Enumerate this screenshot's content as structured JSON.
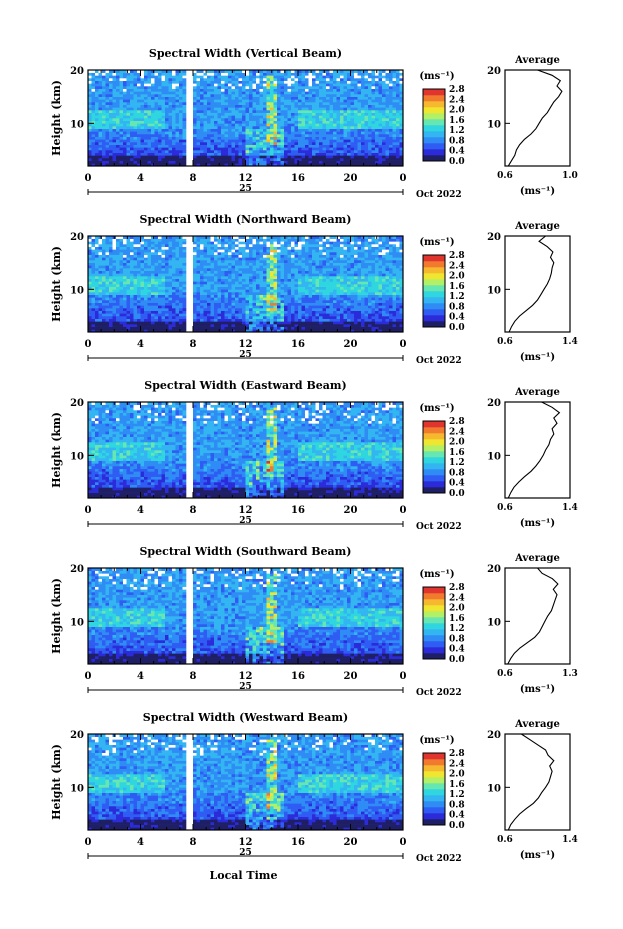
{
  "figure": {
    "month_label": "Oct 2022",
    "day_label": "25",
    "xlabel": "Local Time",
    "ylabel": "Height (km)",
    "unit_label": "(ms⁻¹)",
    "profile_title": "Average",
    "profile_xlabel": "(ms⁻¹)"
  },
  "colorbar": {
    "ticks": [
      "2.8",
      "2.4",
      "2.0",
      "1.6",
      "1.2",
      "0.8",
      "0.4",
      "0.0"
    ],
    "colors": [
      "#1f1f66",
      "#2b2bd9",
      "#2f5cf2",
      "#2f8cf5",
      "#33b5f2",
      "#2fd6e0",
      "#66e6b0",
      "#b3f066",
      "#f0e62f",
      "#f5b82f",
      "#f27a2f",
      "#e0352f"
    ]
  },
  "chart_data": [
    {
      "type": "heatmap",
      "title": "Spectral Width (Vertical Beam)",
      "x_ticks": [
        "0",
        "4",
        "8",
        "12",
        "16",
        "20",
        "0"
      ],
      "xlim": [
        0,
        24
      ],
      "y_ticks": [
        "20",
        "10"
      ],
      "ylim": [
        2,
        20
      ],
      "zlim": [
        0,
        2.8
      ],
      "profile": {
        "title": "Average",
        "x_ticks": [
          "0.6",
          "1.0"
        ],
        "xlim": [
          0.6,
          1.0
        ],
        "heights": [
          2,
          3,
          4,
          5,
          6,
          7,
          8,
          9,
          10,
          11,
          12,
          13,
          14,
          15,
          16,
          17,
          18,
          19,
          20
        ],
        "values": [
          0.62,
          0.64,
          0.66,
          0.67,
          0.69,
          0.72,
          0.76,
          0.79,
          0.81,
          0.83,
          0.86,
          0.88,
          0.9,
          0.93,
          0.95,
          0.92,
          0.94,
          0.89,
          0.8
        ]
      }
    },
    {
      "type": "heatmap",
      "title": "Spectral Width (Northward Beam)",
      "x_ticks": [
        "0",
        "4",
        "8",
        "12",
        "16",
        "20",
        "0"
      ],
      "xlim": [
        0,
        24
      ],
      "y_ticks": [
        "20",
        "10"
      ],
      "ylim": [
        2,
        20
      ],
      "zlim": [
        0,
        2.8
      ],
      "profile": {
        "title": "Average",
        "x_ticks": [
          "0.6",
          "1.4"
        ],
        "xlim": [
          0.6,
          1.4
        ],
        "heights": [
          2,
          3,
          4,
          5,
          6,
          7,
          8,
          9,
          10,
          11,
          12,
          13,
          14,
          15,
          16,
          17,
          18,
          19,
          20
        ],
        "values": [
          0.65,
          0.68,
          0.72,
          0.78,
          0.86,
          0.94,
          1.0,
          1.04,
          1.08,
          1.12,
          1.15,
          1.17,
          1.18,
          1.2,
          1.16,
          1.19,
          1.12,
          1.02,
          1.1
        ]
      }
    },
    {
      "type": "heatmap",
      "title": "Spectral Width (Eastward Beam)",
      "x_ticks": [
        "0",
        "4",
        "8",
        "12",
        "16",
        "20",
        "0"
      ],
      "xlim": [
        0,
        24
      ],
      "y_ticks": [
        "20",
        "10"
      ],
      "ylim": [
        2,
        20
      ],
      "zlim": [
        0,
        2.8
      ],
      "profile": {
        "title": "Average",
        "x_ticks": [
          "0.6",
          "1.4"
        ],
        "xlim": [
          0.6,
          1.4
        ],
        "heights": [
          2,
          3,
          4,
          5,
          6,
          7,
          8,
          9,
          10,
          11,
          12,
          13,
          14,
          15,
          16,
          17,
          18,
          19,
          20
        ],
        "values": [
          0.64,
          0.67,
          0.71,
          0.77,
          0.84,
          0.92,
          0.98,
          1.03,
          1.07,
          1.1,
          1.14,
          1.16,
          1.2,
          1.18,
          1.24,
          1.2,
          1.27,
          1.18,
          1.05
        ]
      }
    },
    {
      "type": "heatmap",
      "title": "Spectral Width (Southward Beam)",
      "x_ticks": [
        "0",
        "4",
        "8",
        "12",
        "16",
        "20",
        "0"
      ],
      "xlim": [
        0,
        24
      ],
      "y_ticks": [
        "20",
        "10"
      ],
      "ylim": [
        2,
        20
      ],
      "zlim": [
        0,
        2.8
      ],
      "profile": {
        "title": "Average",
        "x_ticks": [
          "0.6",
          "1.3"
        ],
        "xlim": [
          0.6,
          1.3
        ],
        "heights": [
          2,
          3,
          4,
          5,
          6,
          7,
          8,
          9,
          10,
          11,
          12,
          13,
          14,
          15,
          16,
          17,
          18,
          19,
          20
        ],
        "values": [
          0.63,
          0.66,
          0.7,
          0.76,
          0.84,
          0.92,
          0.97,
          1.0,
          1.03,
          1.06,
          1.1,
          1.12,
          1.14,
          1.16,
          1.12,
          1.17,
          1.11,
          1.0,
          0.95
        ]
      }
    },
    {
      "type": "heatmap",
      "title": "Spectral Width (Westward Beam)",
      "x_ticks": [
        "0",
        "4",
        "8",
        "12",
        "16",
        "20",
        "0"
      ],
      "xlim": [
        0,
        24
      ],
      "y_ticks": [
        "20",
        "10"
      ],
      "ylim": [
        2,
        20
      ],
      "zlim": [
        0,
        2.8
      ],
      "profile": {
        "title": "Average",
        "x_ticks": [
          "0.6",
          "1.4"
        ],
        "xlim": [
          0.6,
          1.4
        ],
        "heights": [
          2,
          3,
          4,
          5,
          6,
          7,
          8,
          9,
          10,
          11,
          12,
          13,
          14,
          15,
          16,
          17,
          18,
          19,
          20
        ],
        "values": [
          0.64,
          0.67,
          0.72,
          0.78,
          0.86,
          0.95,
          1.01,
          1.05,
          1.1,
          1.14,
          1.16,
          1.18,
          1.15,
          1.2,
          1.13,
          1.1,
          1.0,
          0.9,
          0.8
        ]
      }
    }
  ]
}
